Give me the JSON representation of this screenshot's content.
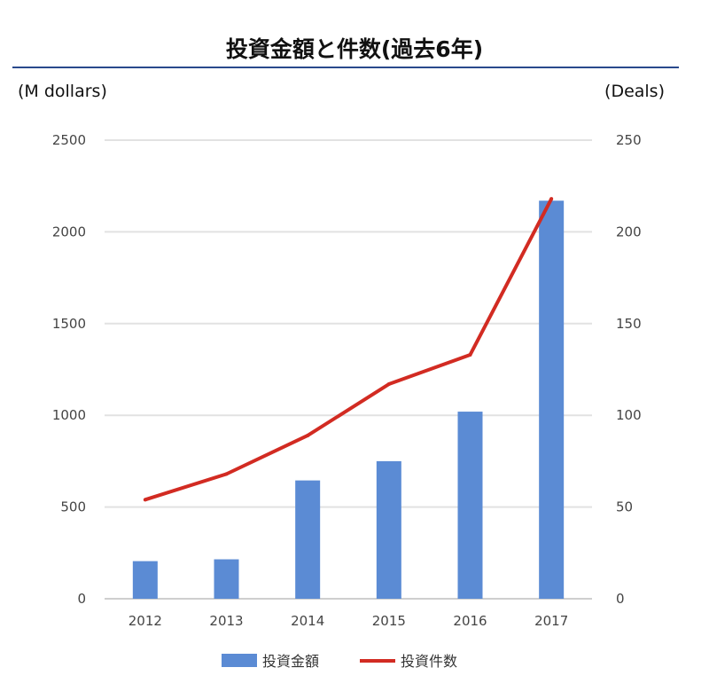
{
  "chart_data": {
    "type": "bar",
    "title": "投資金額と件数(過去6年)",
    "left_axis_label": "(M dollars)",
    "right_axis_label": "(Deals)",
    "categories": [
      "2012",
      "2013",
      "2014",
      "2015",
      "2016",
      "2017"
    ],
    "series": [
      {
        "name": "投資金額",
        "type": "bar",
        "axis": "left",
        "values": [
          205,
          215,
          645,
          750,
          1020,
          2170
        ]
      },
      {
        "name": "投資件数",
        "type": "line",
        "axis": "right",
        "values": [
          54,
          68,
          89,
          117,
          133,
          218
        ]
      }
    ],
    "left_ylim": [
      0,
      2500
    ],
    "left_ticks": [
      "0",
      "500",
      "1000",
      "1500",
      "2000",
      "2500"
    ],
    "right_ylim": [
      0,
      250
    ],
    "right_ticks": [
      "0",
      "50",
      "100",
      "150",
      "200",
      "250"
    ],
    "grid": true,
    "legend_position": "bottom",
    "colors": {
      "bar": "#5b8bd4",
      "line": "#d22b22",
      "grid": "#e2e2e2"
    }
  }
}
